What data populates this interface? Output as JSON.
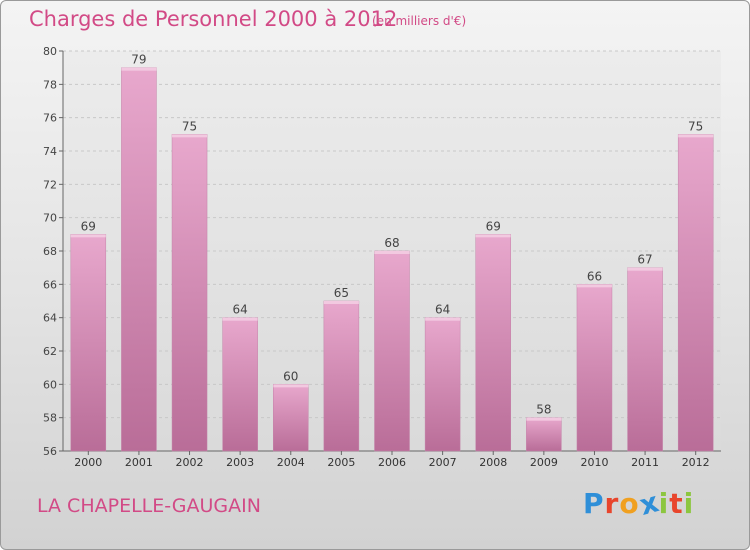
{
  "header": {
    "title": "Charges de Personnel 2000 à 2012",
    "subtitle": "(en milliers d'€)"
  },
  "footer": {
    "town": "LA CHAPELLE-GAUGAIN",
    "logo_letters": [
      {
        "ch": "P",
        "color": "#2f8fd8"
      },
      {
        "ch": "r",
        "color": "#e8452c"
      },
      {
        "ch": "o",
        "color": "#f0a020"
      },
      {
        "ch": "x",
        "color": "#2f8fd8"
      },
      {
        "ch": "i",
        "color": "#8cc63f"
      },
      {
        "ch": "t",
        "color": "#e8452c"
      },
      {
        "ch": "i",
        "color": "#8cc63f"
      }
    ]
  },
  "colors": {
    "bar_fill": "#d97fb0",
    "text_accent": "#d24a86"
  },
  "chart_data": {
    "type": "bar",
    "categories": [
      "2000",
      "2001",
      "2002",
      "2003",
      "2004",
      "2005",
      "2006",
      "2007",
      "2008",
      "2009",
      "2010",
      "2011",
      "2012"
    ],
    "values": [
      69,
      79,
      75,
      64,
      60,
      65,
      68,
      64,
      69,
      58,
      66,
      67,
      75
    ],
    "data_labels": [
      "69",
      "79",
      "75",
      "64",
      "60",
      "65",
      "68",
      "64",
      "69",
      "58",
      "66",
      "67",
      "75"
    ],
    "title": "Charges de Personnel 2000 à 2012",
    "subtitle": "(en milliers d'€)",
    "xlabel": "",
    "ylabel": "",
    "ylim": [
      56,
      80
    ],
    "yticks": [
      56,
      58,
      60,
      62,
      64,
      66,
      68,
      70,
      72,
      74,
      76,
      78,
      80
    ],
    "grid": true
  }
}
